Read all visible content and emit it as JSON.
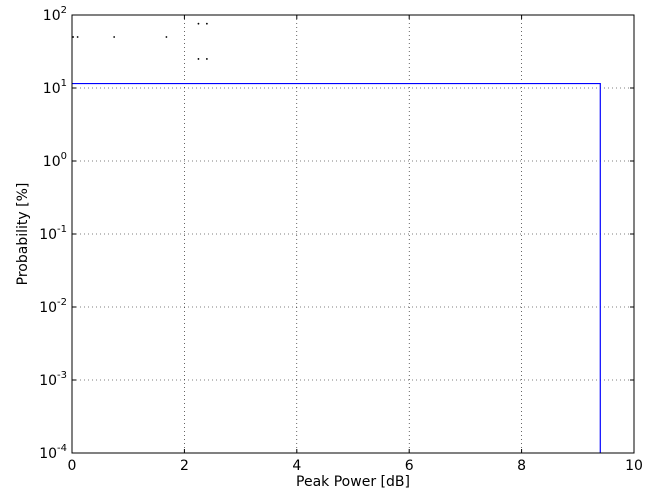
{
  "chart_data": {
    "type": "line",
    "title": "",
    "xlabel": "Peak Power [dB]",
    "ylabel": "Probability [%]",
    "xlim": [
      0,
      10
    ],
    "ylim": [
      0.0001,
      100
    ],
    "yscale": "log",
    "grid": true,
    "x_ticks": [
      {
        "value": 0,
        "label": "0"
      },
      {
        "value": 2,
        "label": "2"
      },
      {
        "value": 4,
        "label": "4"
      },
      {
        "value": 6,
        "label": "6"
      },
      {
        "value": 8,
        "label": "8"
      },
      {
        "value": 10,
        "label": "10"
      }
    ],
    "y_ticks": [
      {
        "value": 100,
        "base": "10",
        "exp": "2"
      },
      {
        "value": 10,
        "base": "10",
        "exp": "1"
      },
      {
        "value": 1,
        "base": "10",
        "exp": "0"
      },
      {
        "value": 0.1,
        "base": "10",
        "exp": "-1"
      },
      {
        "value": 0.01,
        "base": "10",
        "exp": "-2"
      },
      {
        "value": 0.001,
        "base": "10",
        "exp": "-3"
      },
      {
        "value": 0.0001,
        "base": "10",
        "exp": "-4"
      }
    ],
    "series": [
      {
        "color": "#0000ff",
        "x": [
          0,
          9.4,
          9.4
        ],
        "y": [
          11.5,
          11.5,
          0.0001
        ]
      }
    ],
    "scatter_points": [
      {
        "x": 0.02,
        "y": 50
      },
      {
        "x": 0.1,
        "y": 50
      },
      {
        "x": 0.75,
        "y": 50
      },
      {
        "x": 1.68,
        "y": 50
      },
      {
        "x": 2.25,
        "y": 76
      },
      {
        "x": 2.4,
        "y": 76
      },
      {
        "x": 2.25,
        "y": 25
      },
      {
        "x": 2.4,
        "y": 25
      }
    ]
  }
}
